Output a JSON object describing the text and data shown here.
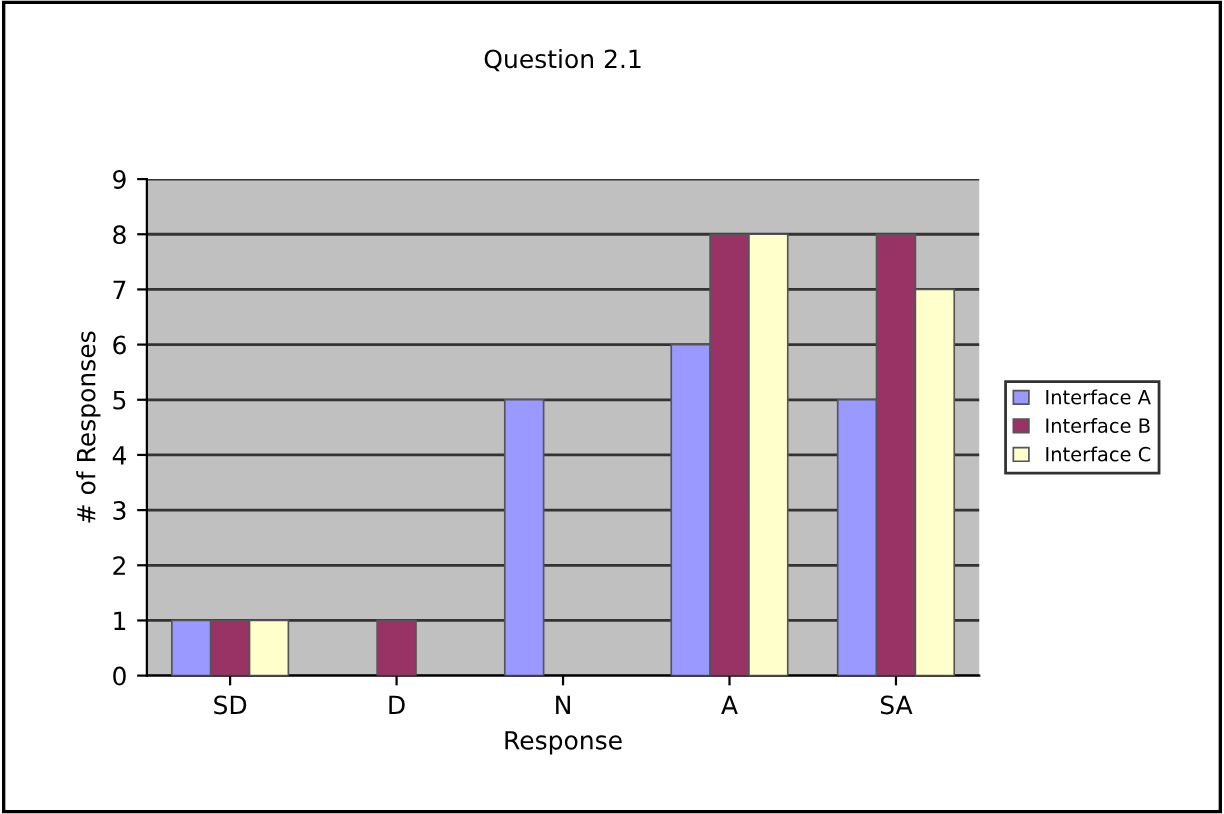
{
  "chart_data": {
    "type": "bar",
    "title": "Question 2.1",
    "xlabel": "Response",
    "ylabel": "# of Responses",
    "categories": [
      "SD",
      "D",
      "N",
      "A",
      "SA"
    ],
    "series": [
      {
        "name": "Interface A",
        "color": "#9999ff",
        "values": [
          1,
          0,
          5,
          6,
          5
        ]
      },
      {
        "name": "Interface B",
        "color": "#993366",
        "values": [
          1,
          1,
          0,
          8,
          8
        ]
      },
      {
        "name": "Interface C",
        "color": "#ffffcc",
        "values": [
          1,
          0,
          0,
          8,
          7
        ]
      }
    ],
    "ylim": [
      0,
      9
    ],
    "yticks": [
      0,
      1,
      2,
      3,
      4,
      5,
      6,
      7,
      8,
      9
    ],
    "grid": "y",
    "legend": "right"
  }
}
